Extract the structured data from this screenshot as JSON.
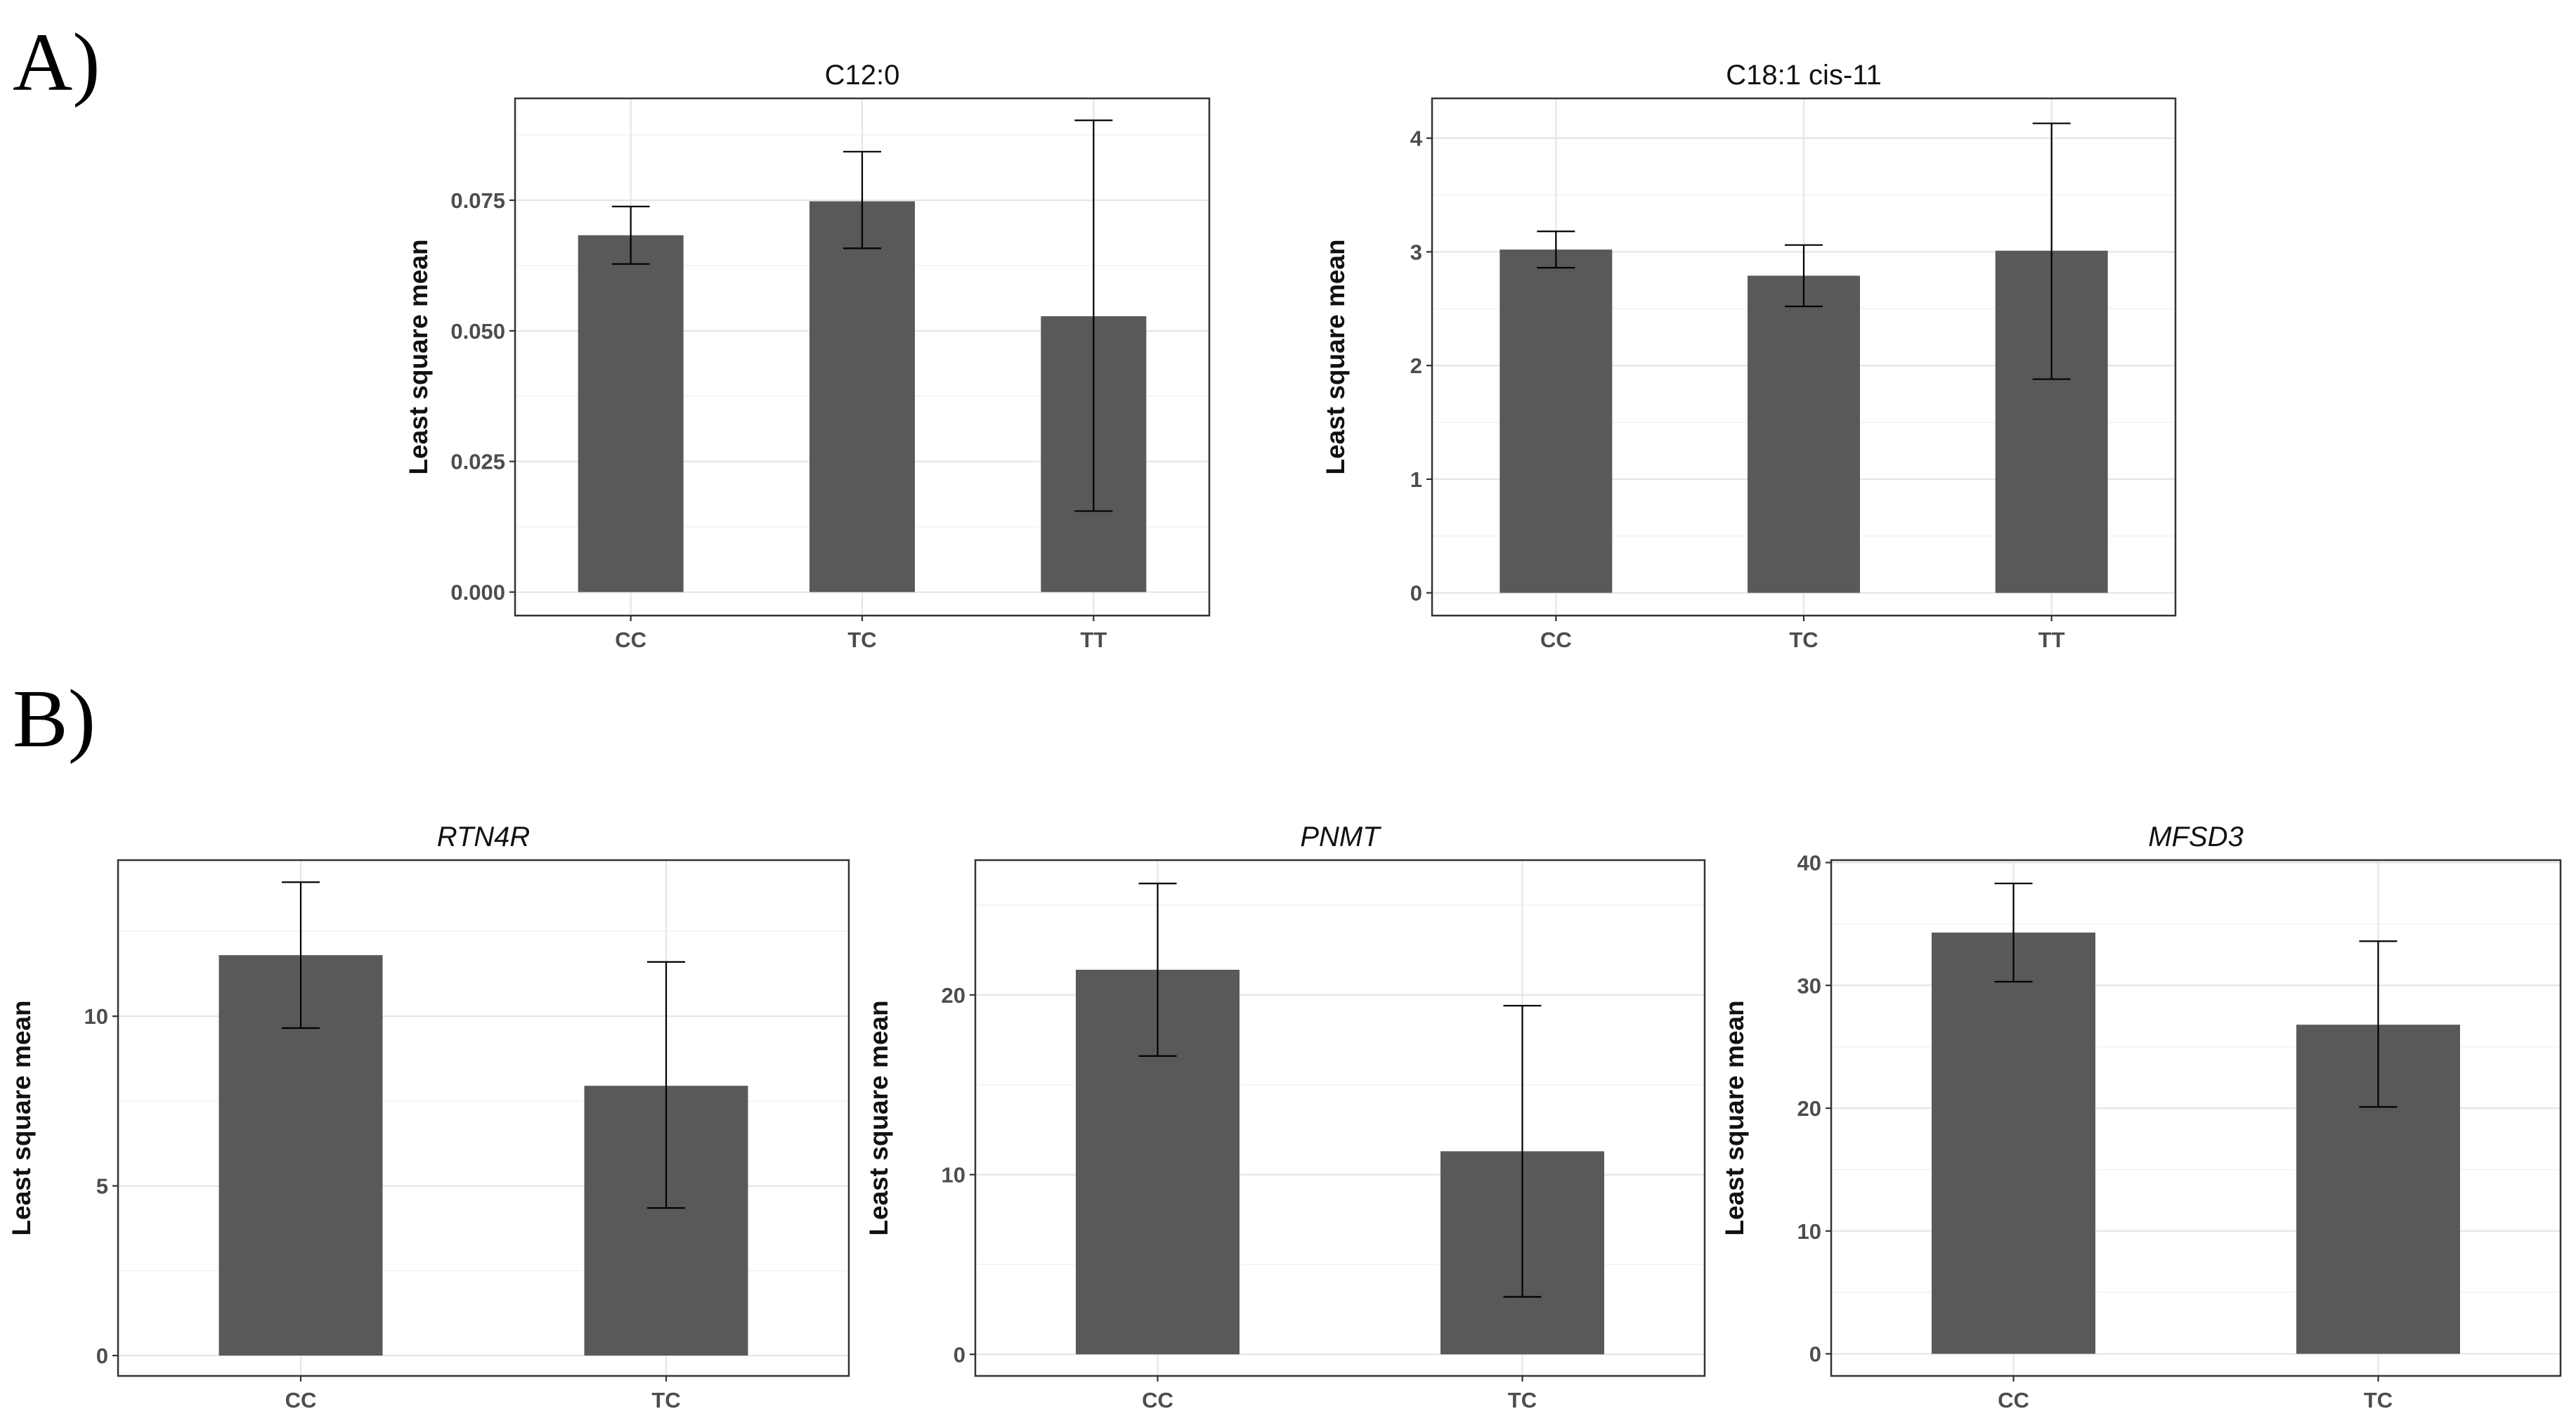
{
  "panel_labels": {
    "a": "A)",
    "b": "B)"
  },
  "chart_data": [
    {
      "type": "bar",
      "title": "C12:0",
      "title_italic": false,
      "xlabel": "",
      "ylabel": "Least square mean",
      "categories": [
        "CC",
        "TC",
        "TT"
      ],
      "values": [
        0.0683,
        0.0748,
        0.0528
      ],
      "error_low": [
        0.0628,
        0.0658,
        0.0155
      ],
      "error_high": [
        0.0738,
        0.0843,
        0.0903
      ],
      "ylim": [
        -0.0045,
        0.0945
      ],
      "yticks": [
        0.0,
        0.025,
        0.05,
        0.075
      ],
      "ytick_labels": [
        "0.000",
        "0.025",
        "0.050",
        "0.075"
      ],
      "grid": true
    },
    {
      "type": "bar",
      "title": "C18:1 cis-11",
      "title_italic": false,
      "xlabel": "",
      "ylabel": "Least square mean",
      "categories": [
        "CC",
        "TC",
        "TT"
      ],
      "values": [
        3.02,
        2.79,
        3.01
      ],
      "error_low": [
        2.86,
        2.52,
        1.88
      ],
      "error_high": [
        3.18,
        3.06,
        4.13
      ],
      "ylim": [
        -0.2,
        4.35
      ],
      "yticks": [
        0,
        1,
        2,
        3,
        4
      ],
      "ytick_labels": [
        "0",
        "1",
        "2",
        "3",
        "4"
      ],
      "grid": true
    },
    {
      "type": "bar",
      "title": "RTN4R",
      "title_italic": true,
      "xlabel": "",
      "ylabel": "Least square mean",
      "categories": [
        "CC",
        "TC"
      ],
      "values": [
        11.8,
        7.95
      ],
      "error_low": [
        9.65,
        4.35
      ],
      "error_high": [
        13.95,
        11.6
      ],
      "ylim": [
        -0.6,
        14.6
      ],
      "yticks": [
        0,
        5,
        10
      ],
      "ytick_labels": [
        "0",
        "5",
        "10"
      ],
      "grid": true
    },
    {
      "type": "bar",
      "title": "PNMT",
      "title_italic": true,
      "xlabel": "",
      "ylabel": "Least square mean",
      "categories": [
        "CC",
        "TC"
      ],
      "values": [
        21.4,
        11.3
      ],
      "error_low": [
        16.6,
        3.2
      ],
      "error_high": [
        26.2,
        19.4
      ],
      "ylim": [
        -1.2,
        27.5
      ],
      "yticks": [
        0,
        10,
        20
      ],
      "ytick_labels": [
        "0",
        "10",
        "20"
      ],
      "grid": true
    },
    {
      "type": "bar",
      "title": "MFSD3",
      "title_italic": true,
      "xlabel": "",
      "ylabel": "Least square mean",
      "categories": [
        "CC",
        "TC"
      ],
      "values": [
        34.3,
        26.8
      ],
      "error_low": [
        30.3,
        20.1
      ],
      "error_high": [
        38.3,
        33.6
      ],
      "ylim": [
        -1.8,
        40.2
      ],
      "yticks": [
        0,
        10,
        20,
        30,
        40
      ],
      "ytick_labels": [
        "0",
        "10",
        "20",
        "30",
        "40"
      ],
      "grid": true
    }
  ]
}
